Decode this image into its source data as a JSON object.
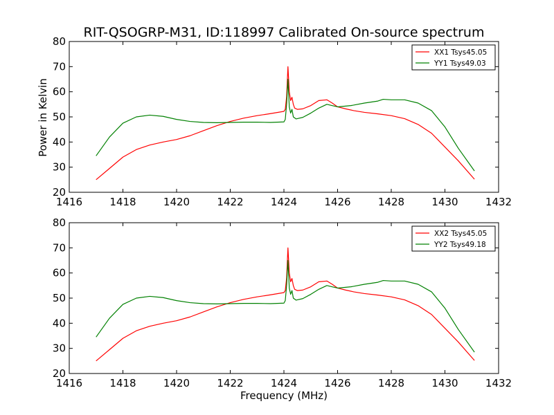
{
  "figure": {
    "title": "RIT-QSOGRP-M31, ID:118997 Calibrated On-source spectrum",
    "xlabel": "Frequency (MHz)",
    "ylabel": "Power in Kelvin"
  },
  "chart_data": [
    {
      "type": "line",
      "title": "RIT-QSOGRP-M31, ID:118997 Calibrated On-source spectrum",
      "xlabel": "",
      "ylabel": "Power in Kelvin",
      "xlim": [
        1416,
        1432
      ],
      "ylim": [
        20,
        80
      ],
      "xticks": [
        1416,
        1418,
        1420,
        1422,
        1424,
        1426,
        1428,
        1430,
        1432
      ],
      "yticks": [
        20,
        30,
        40,
        50,
        60,
        70,
        80
      ],
      "grid": false,
      "legend_position": "top-right",
      "series": [
        {
          "name": "XX1 Tsys45.05",
          "color": "#ff0000",
          "x": [
            1417.0,
            1417.5,
            1418.0,
            1418.5,
            1419.0,
            1419.5,
            1420.0,
            1420.5,
            1421.0,
            1421.5,
            1422.0,
            1422.5,
            1423.0,
            1423.5,
            1424.0,
            1424.05,
            1424.1,
            1424.15,
            1424.2,
            1424.25,
            1424.3,
            1424.35,
            1424.4,
            1424.5,
            1424.7,
            1425.0,
            1425.3,
            1425.6,
            1425.8,
            1426.0,
            1426.3,
            1426.6,
            1427.0,
            1427.5,
            1428.0,
            1428.5,
            1429.0,
            1429.5,
            1430.0,
            1430.5,
            1431.1
          ],
          "y": [
            25.0,
            29.5,
            34.0,
            37.0,
            38.8,
            40.0,
            41.0,
            42.5,
            44.5,
            46.5,
            48.2,
            49.5,
            50.5,
            51.3,
            52.2,
            53.0,
            58.0,
            70.0,
            60.0,
            56.5,
            57.8,
            55.0,
            53.5,
            53.0,
            53.2,
            54.5,
            56.5,
            56.8,
            55.5,
            54.0,
            53.2,
            52.5,
            51.8,
            51.2,
            50.5,
            49.3,
            47.0,
            43.5,
            38.0,
            32.5,
            25.2
          ]
        },
        {
          "name": "YY1 Tsys49.03",
          "color": "#008000",
          "x": [
            1417.0,
            1417.5,
            1418.0,
            1418.5,
            1419.0,
            1419.5,
            1420.0,
            1420.5,
            1421.0,
            1421.5,
            1422.0,
            1422.5,
            1423.0,
            1423.5,
            1424.0,
            1424.05,
            1424.1,
            1424.15,
            1424.2,
            1424.25,
            1424.3,
            1424.35,
            1424.45,
            1424.7,
            1425.0,
            1425.3,
            1425.6,
            1425.8,
            1426.0,
            1426.5,
            1427.0,
            1427.5,
            1427.7,
            1428.0,
            1428.5,
            1429.0,
            1429.5,
            1430.0,
            1430.5,
            1431.1
          ],
          "y": [
            34.5,
            42.0,
            47.5,
            50.0,
            50.7,
            50.2,
            49.0,
            48.2,
            47.8,
            47.7,
            47.8,
            47.9,
            47.9,
            47.8,
            48.0,
            49.0,
            55.0,
            65.0,
            54.0,
            51.5,
            53.0,
            50.0,
            49.2,
            49.8,
            51.5,
            53.5,
            55.0,
            54.5,
            54.0,
            54.5,
            55.5,
            56.3,
            57.0,
            56.8,
            56.8,
            55.5,
            52.5,
            46.0,
            37.5,
            28.5
          ]
        }
      ]
    },
    {
      "type": "line",
      "title": "",
      "xlabel": "Frequency (MHz)",
      "ylabel": "",
      "xlim": [
        1416,
        1432
      ],
      "ylim": [
        20,
        80
      ],
      "xticks": [
        1416,
        1418,
        1420,
        1422,
        1424,
        1426,
        1428,
        1430,
        1432
      ],
      "yticks": [
        20,
        30,
        40,
        50,
        60,
        70,
        80
      ],
      "grid": false,
      "legend_position": "top-right",
      "series": [
        {
          "name": "XX2 Tsys45.05",
          "color": "#ff0000",
          "x": [
            1417.0,
            1417.5,
            1418.0,
            1418.5,
            1419.0,
            1419.5,
            1420.0,
            1420.5,
            1421.0,
            1421.5,
            1422.0,
            1422.5,
            1423.0,
            1423.5,
            1424.0,
            1424.05,
            1424.1,
            1424.15,
            1424.2,
            1424.25,
            1424.3,
            1424.35,
            1424.4,
            1424.5,
            1424.7,
            1425.0,
            1425.3,
            1425.6,
            1425.8,
            1426.0,
            1426.3,
            1426.6,
            1427.0,
            1427.5,
            1428.0,
            1428.5,
            1429.0,
            1429.5,
            1430.0,
            1430.5,
            1431.1
          ],
          "y": [
            25.0,
            29.5,
            34.0,
            37.0,
            38.8,
            40.0,
            41.0,
            42.5,
            44.5,
            46.5,
            48.2,
            49.5,
            50.5,
            51.3,
            52.2,
            53.0,
            58.0,
            70.0,
            60.0,
            56.5,
            57.8,
            55.0,
            53.5,
            53.0,
            53.2,
            54.5,
            56.5,
            56.8,
            55.5,
            54.0,
            53.2,
            52.5,
            51.8,
            51.2,
            50.5,
            49.3,
            47.0,
            43.5,
            38.0,
            32.5,
            25.2
          ]
        },
        {
          "name": "YY2 Tsys49.18",
          "color": "#008000",
          "x": [
            1417.0,
            1417.5,
            1418.0,
            1418.5,
            1419.0,
            1419.5,
            1420.0,
            1420.5,
            1421.0,
            1421.5,
            1422.0,
            1422.5,
            1423.0,
            1423.5,
            1424.0,
            1424.05,
            1424.1,
            1424.15,
            1424.2,
            1424.25,
            1424.3,
            1424.35,
            1424.45,
            1424.7,
            1425.0,
            1425.3,
            1425.6,
            1425.8,
            1426.0,
            1426.5,
            1427.0,
            1427.5,
            1427.7,
            1428.0,
            1428.5,
            1429.0,
            1429.5,
            1430.0,
            1430.5,
            1431.1
          ],
          "y": [
            34.5,
            42.0,
            47.5,
            50.0,
            50.7,
            50.2,
            49.0,
            48.2,
            47.8,
            47.7,
            47.8,
            47.9,
            47.9,
            47.8,
            48.0,
            49.0,
            55.0,
            65.0,
            54.0,
            51.5,
            53.0,
            50.0,
            49.2,
            49.8,
            51.5,
            53.5,
            55.0,
            54.5,
            54.0,
            54.5,
            55.5,
            56.3,
            57.0,
            56.8,
            56.8,
            55.5,
            52.5,
            46.0,
            37.5,
            28.5
          ]
        }
      ]
    }
  ]
}
